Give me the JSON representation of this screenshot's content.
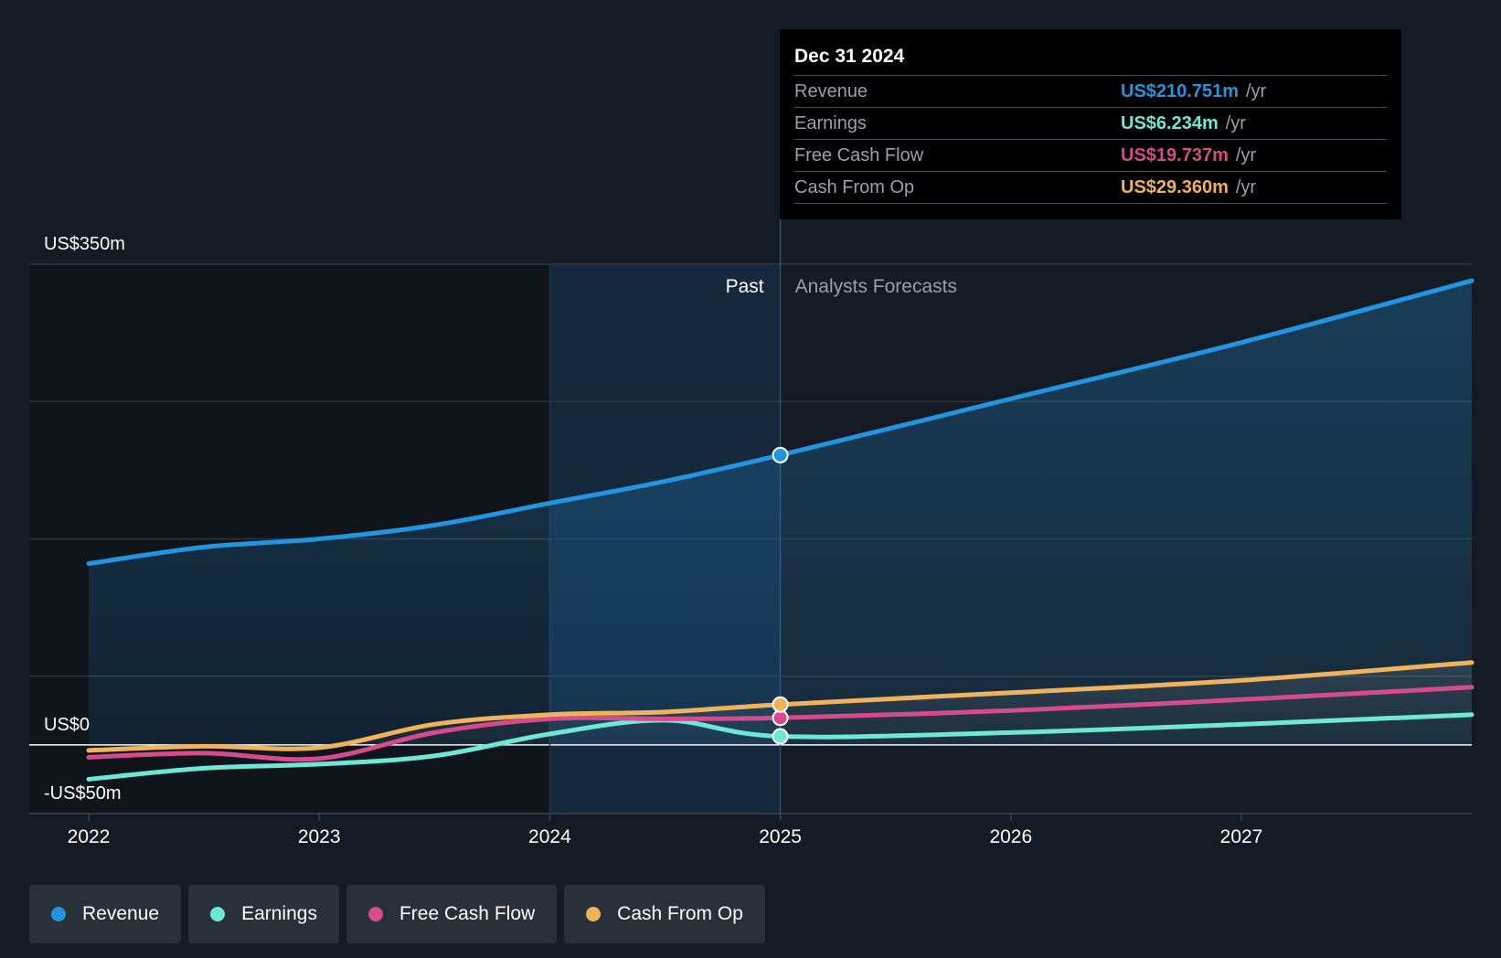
{
  "chart_data": {
    "type": "line",
    "title": "",
    "x_unit": "year",
    "ylim": [
      -50,
      350
    ],
    "y_labels": [
      "US$350m",
      "US$0",
      "-US$50m"
    ],
    "xticks": [
      "2022",
      "2023",
      "2024",
      "2025",
      "2026",
      "2027"
    ],
    "xrange": [
      2021.75,
      2027.99
    ],
    "past_label": "Past",
    "forecast_label": "Analysts Forecasts",
    "divider_x": 2025.0,
    "highlight_start_x": 2024.0,
    "series": [
      {
        "name": "Revenue",
        "color": "#2394df",
        "x": [
          2022.0,
          2022.5,
          2023.0,
          2023.5,
          2024.0,
          2024.5,
          2025.0,
          2026.0,
          2027.0,
          2028.0
        ],
        "values": [
          132,
          144,
          150,
          160,
          176,
          192,
          211,
          252,
          293,
          338
        ]
      },
      {
        "name": "Earnings",
        "color": "#6ee7d6",
        "x": [
          2022.0,
          2022.5,
          2023.0,
          2023.5,
          2024.0,
          2024.5,
          2025.0,
          2026.0,
          2027.0,
          2028.0
        ],
        "values": [
          -25,
          -17,
          -14,
          -8,
          8,
          18,
          6.2,
          9,
          15,
          22
        ]
      },
      {
        "name": "Free Cash Flow",
        "color": "#d64b8e",
        "x": [
          2022.0,
          2022.5,
          2023.0,
          2023.5,
          2024.0,
          2024.5,
          2025.0,
          2026.0,
          2027.0,
          2028.0
        ],
        "values": [
          -9,
          -6,
          -10,
          9,
          19,
          19,
          19.7,
          25,
          33,
          42
        ]
      },
      {
        "name": "Cash From Op",
        "color": "#f0b35b",
        "x": [
          2022.0,
          2022.5,
          2023.0,
          2023.5,
          2024.0,
          2024.5,
          2025.0,
          2026.0,
          2027.0,
          2028.0
        ],
        "values": [
          -4,
          -1,
          -2,
          15,
          22,
          24,
          29.4,
          38,
          47,
          60
        ]
      }
    ]
  },
  "tooltip": {
    "date": "Dec 31 2024",
    "rows": [
      {
        "label": "Revenue",
        "value": "US$210.751m",
        "unit": "/yr",
        "color": "#2394df"
      },
      {
        "label": "Earnings",
        "value": "US$6.234m",
        "unit": "/yr",
        "color": "#6ee7d6"
      },
      {
        "label": "Free Cash Flow",
        "value": "US$19.737m",
        "unit": "/yr",
        "color": "#d64b8e"
      },
      {
        "label": "Cash From Op",
        "value": "US$29.360m",
        "unit": "/yr",
        "color": "#f0b35b"
      }
    ]
  },
  "legend": [
    {
      "label": "Revenue",
      "color": "#2394df"
    },
    {
      "label": "Earnings",
      "color": "#6ee7d6"
    },
    {
      "label": "Free Cash Flow",
      "color": "#d64b8e"
    },
    {
      "label": "Cash From Op",
      "color": "#f0b35b"
    }
  ]
}
